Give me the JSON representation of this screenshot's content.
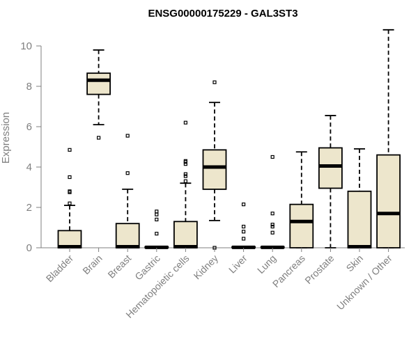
{
  "chart_data": {
    "type": "boxplot",
    "title": "ENSG00000175229 - GAL3ST3",
    "xlabel": "",
    "ylabel": "Expression",
    "ylim": [
      0,
      11
    ],
    "yticks": [
      0,
      2,
      4,
      6,
      8,
      10
    ],
    "box_color": "#ede6cc",
    "categories": [
      "Bladder",
      "Brain",
      "Breast",
      "Gastric",
      "Hematopoietic cells",
      "Kidney",
      "Liver",
      "Lung",
      "Pancreas",
      "Prostate",
      "Skin",
      "Unknown / Other"
    ],
    "boxes": [
      {
        "name": "Bladder",
        "whislo": 0,
        "q1": 0,
        "med": 0.05,
        "q3": 0.85,
        "whishi": 2.1,
        "fliers": [
          2.2,
          2.75,
          2.8,
          3.5,
          4.85
        ]
      },
      {
        "name": "Brain",
        "whislo": 6.1,
        "q1": 7.6,
        "med": 8.3,
        "q3": 8.65,
        "whishi": 9.8,
        "fliers": [
          5.45
        ]
      },
      {
        "name": "Breast",
        "whislo": 0,
        "q1": 0,
        "med": 0.05,
        "q3": 1.2,
        "whishi": 2.9,
        "fliers": [
          3.7,
          5.55
        ]
      },
      {
        "name": "Gastric",
        "whislo": 0,
        "q1": 0,
        "med": 0.02,
        "q3": 0.05,
        "whishi": 0.05,
        "fliers": [
          0.7,
          1.4,
          1.65,
          1.8
        ]
      },
      {
        "name": "Hematopoietic cells",
        "whislo": 0,
        "q1": 0,
        "med": 0.05,
        "q3": 1.3,
        "whishi": 3.2,
        "fliers": [
          3.3,
          3.55,
          3.65,
          4.15,
          4.25,
          4.3,
          6.2
        ]
      },
      {
        "name": "Kidney",
        "whislo": 1.35,
        "q1": 2.9,
        "med": 4.0,
        "q3": 4.85,
        "whishi": 7.2,
        "fliers": [
          0,
          8.2
        ]
      },
      {
        "name": "Liver",
        "whislo": 0,
        "q1": 0,
        "med": 0.02,
        "q3": 0.05,
        "whishi": 0.05,
        "fliers": [
          0.45,
          0.8,
          1.05,
          2.15
        ]
      },
      {
        "name": "Lung",
        "whislo": 0,
        "q1": 0,
        "med": 0.02,
        "q3": 0.05,
        "whishi": 0.05,
        "fliers": [
          0.75,
          1.05,
          1.15,
          1.7,
          4.5
        ]
      },
      {
        "name": "Pancreas",
        "whislo": 0,
        "q1": 0,
        "med": 1.3,
        "q3": 2.15,
        "whishi": 4.75,
        "fliers": []
      },
      {
        "name": "Prostate",
        "whislo": 0,
        "q1": 2.95,
        "med": 4.05,
        "q3": 4.95,
        "whishi": 6.55,
        "fliers": []
      },
      {
        "name": "Skin",
        "whislo": 0,
        "q1": 0,
        "med": 0.05,
        "q3": 2.8,
        "whishi": 4.9,
        "fliers": []
      },
      {
        "name": "Unknown / Other",
        "whislo": 0,
        "q1": 0,
        "med": 1.7,
        "q3": 4.6,
        "whishi": 10.8,
        "fliers": []
      }
    ]
  }
}
